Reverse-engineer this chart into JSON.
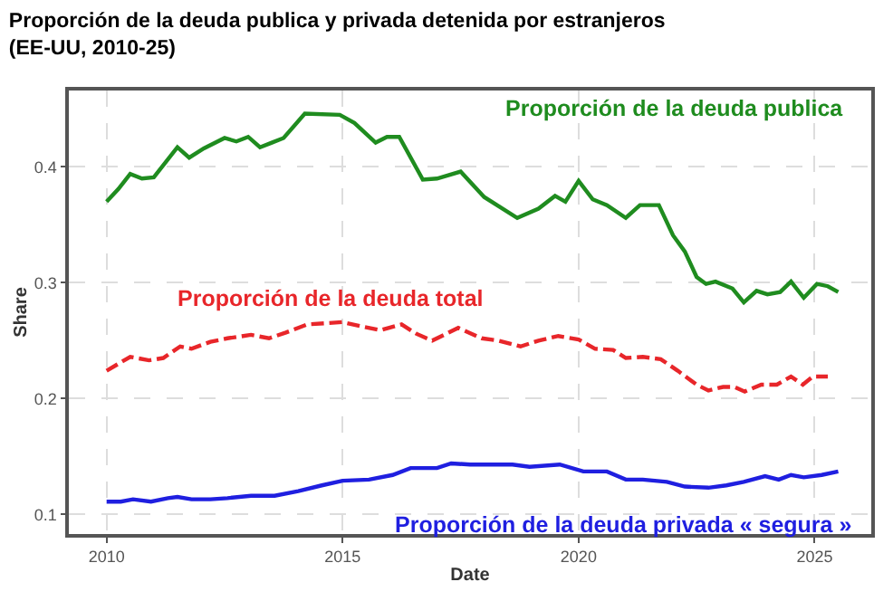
{
  "chart_data": {
    "type": "line",
    "title": "Proporción de la deuda publica y privada detenida por estranjeros\n(EE-UU, 2010-25)",
    "xlabel": "Date",
    "ylabel": "Share",
    "xlim": [
      2009.2,
      2026.2
    ],
    "xticks": [
      2010,
      2015,
      2020,
      2025
    ],
    "ylim": [
      0.083,
      0.466
    ],
    "yticks": [
      0.1,
      0.2,
      0.3,
      0.4
    ],
    "grid": true,
    "legend": false,
    "marker": "none",
    "series": [
      {
        "name": "Proporción de la deuda publica",
        "color": "#1f8c1f",
        "line_style": "solid",
        "x": [
          2010,
          2010.25,
          2010.5,
          2010.75,
          2011,
          2011.5,
          2011.75,
          2012.06,
          2012.5,
          2012.75,
          2013,
          2013.25,
          2013.5,
          2013.75,
          2014.2,
          2014.94,
          2015.25,
          2015.7,
          2015.94,
          2016.2,
          2016.7,
          2017,
          2017.5,
          2018,
          2018.7,
          2019.15,
          2019.5,
          2019.72,
          2020,
          2020.3,
          2020.6,
          2021,
          2021.3,
          2021.7,
          2022,
          2022.25,
          2022.5,
          2022.7,
          2022.9,
          2023.26,
          2023.5,
          2023.77,
          2024,
          2024.27,
          2024.5,
          2024.77,
          2025.05,
          2025.28,
          2025.5
        ],
        "values": [
          0.37,
          0.381,
          0.394,
          0.39,
          0.391,
          0.417,
          0.408,
          0.416,
          0.425,
          0.422,
          0.426,
          0.417,
          0.421,
          0.425,
          0.446,
          0.445,
          0.438,
          0.421,
          0.426,
          0.426,
          0.389,
          0.39,
          0.396,
          0.374,
          0.356,
          0.364,
          0.375,
          0.37,
          0.388,
          0.372,
          0.367,
          0.356,
          0.367,
          0.367,
          0.341,
          0.327,
          0.305,
          0.299,
          0.301,
          0.295,
          0.283,
          0.293,
          0.29,
          0.292,
          0.301,
          0.287,
          0.299,
          0.297,
          0.292
        ]
      },
      {
        "name": "Proporción de la deuda total",
        "color": "#e8262a",
        "line_style": "dashed",
        "x": [
          2010,
          2010.5,
          2010.9,
          2011.2,
          2011.56,
          2011.8,
          2012.2,
          2012.56,
          2013.06,
          2013.44,
          2013.8,
          2014.25,
          2015,
          2015.44,
          2015.8,
          2016.25,
          2016.56,
          2016.9,
          2017.45,
          2017.95,
          2018.3,
          2018.77,
          2019.15,
          2019.57,
          2020,
          2020.35,
          2020.73,
          2021,
          2021.36,
          2021.74,
          2022.1,
          2022.5,
          2022.75,
          2023.06,
          2023.3,
          2023.52,
          2023.87,
          2024.2,
          2024.5,
          2024.75,
          2024.96,
          2025.28
        ],
        "values": [
          0.224,
          0.236,
          0.233,
          0.235,
          0.245,
          0.243,
          0.249,
          0.252,
          0.255,
          0.252,
          0.257,
          0.264,
          0.266,
          0.262,
          0.259,
          0.264,
          0.256,
          0.25,
          0.261,
          0.252,
          0.25,
          0.245,
          0.25,
          0.254,
          0.251,
          0.243,
          0.242,
          0.235,
          0.236,
          0.234,
          0.224,
          0.212,
          0.207,
          0.21,
          0.21,
          0.206,
          0.212,
          0.212,
          0.219,
          0.212,
          0.219,
          0.219
        ]
      },
      {
        "name": "Proporción de la deuda privada « segura »",
        "color": "#1f1fe0",
        "line_style": "solid",
        "x": [
          2010,
          2010.3,
          2010.56,
          2010.94,
          2011.3,
          2011.5,
          2011.8,
          2012.2,
          2012.56,
          2013.06,
          2013.56,
          2014.06,
          2014.56,
          2015,
          2015.56,
          2016.06,
          2016.44,
          2017,
          2017.3,
          2017.7,
          2018.6,
          2018.96,
          2019.6,
          2020.1,
          2020.6,
          2021,
          2021.36,
          2021.87,
          2022.25,
          2022.75,
          2023.13,
          2023.5,
          2023.95,
          2024.24,
          2024.5,
          2024.77,
          2025.15,
          2025.5
        ],
        "values": [
          0.111,
          0.111,
          0.113,
          0.111,
          0.114,
          0.115,
          0.113,
          0.113,
          0.114,
          0.116,
          0.116,
          0.12,
          0.125,
          0.129,
          0.13,
          0.134,
          0.14,
          0.14,
          0.144,
          0.143,
          0.143,
          0.141,
          0.143,
          0.137,
          0.137,
          0.13,
          0.13,
          0.128,
          0.124,
          0.123,
          0.125,
          0.128,
          0.133,
          0.13,
          0.134,
          0.132,
          0.134,
          0.137
        ]
      }
    ]
  }
}
